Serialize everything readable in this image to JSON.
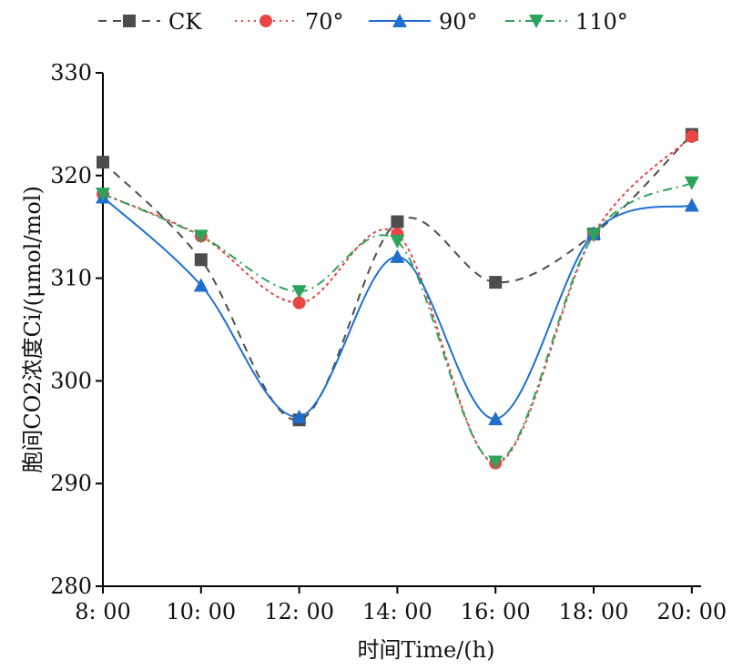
{
  "chart_data": {
    "type": "line",
    "title": "",
    "xlabel": "时间Time/(h)",
    "ylabel": "胞间CO2浓度Ci/(μmol/mol)",
    "categories": [
      "8: 00",
      "10: 00",
      "12: 00",
      "14: 00",
      "16: 00",
      "18: 00",
      "20: 00"
    ],
    "ylim": [
      280,
      330
    ],
    "yticks": [
      "280",
      "290",
      "300",
      "310",
      "320",
      "330"
    ],
    "grid": false,
    "legend_position": "top",
    "series": [
      {
        "name": "CK",
        "values": [
          321.3,
          311.8,
          296.2,
          315.5,
          309.6,
          314.3,
          324.0
        ],
        "color": "#4d4d4d",
        "marker": "square",
        "line": "dashed"
      },
      {
        "name": "70°",
        "values": [
          318.2,
          314.1,
          307.6,
          314.3,
          292.0,
          314.3,
          323.8
        ],
        "color": "#e84545",
        "marker": "circle",
        "line": "dotted"
      },
      {
        "name": "90°",
        "values": [
          317.9,
          309.3,
          296.5,
          312.1,
          296.3,
          314.4,
          317.1
        ],
        "color": "#1f6fd1",
        "marker": "triangle-up",
        "line": "solid"
      },
      {
        "name": "110°",
        "values": [
          318.2,
          314.1,
          308.7,
          313.6,
          292.1,
          314.2,
          319.3
        ],
        "color": "#2ea35b",
        "marker": "triangle-down",
        "line": "dashdot"
      }
    ]
  }
}
